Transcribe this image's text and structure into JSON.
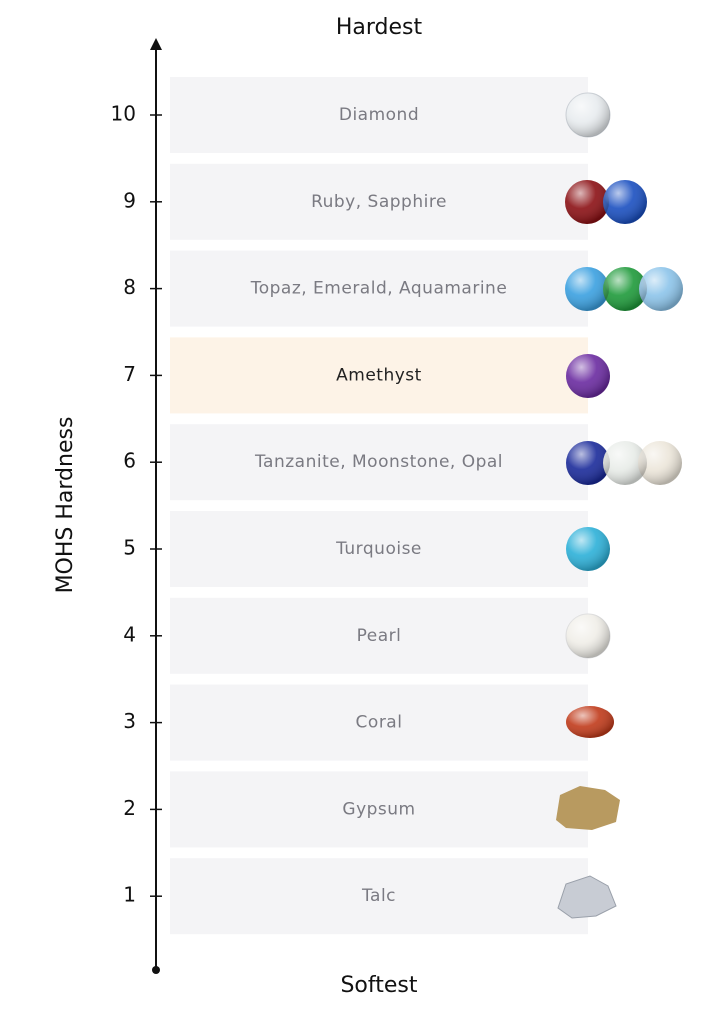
{
  "top_label": "Hardest",
  "bottom_label": "Softest",
  "axis_label": "MOHS Hardness",
  "rows": [
    {
      "level": 10,
      "gems": "Diamond"
    },
    {
      "level": 9,
      "gems": "Ruby, Sapphire"
    },
    {
      "level": 8,
      "gems": "Topaz, Emerald, Aquamarine"
    },
    {
      "level": 7,
      "gems": "Amethyst"
    },
    {
      "level": 6,
      "gems": "Tanzanite, Moonstone, Opal"
    },
    {
      "level": 5,
      "gems": "Turquoise"
    },
    {
      "level": 4,
      "gems": "Pearl"
    },
    {
      "level": 3,
      "gems": "Coral"
    },
    {
      "level": 2,
      "gems": "Gypsum"
    },
    {
      "level": 1,
      "gems": "Talc"
    }
  ]
}
